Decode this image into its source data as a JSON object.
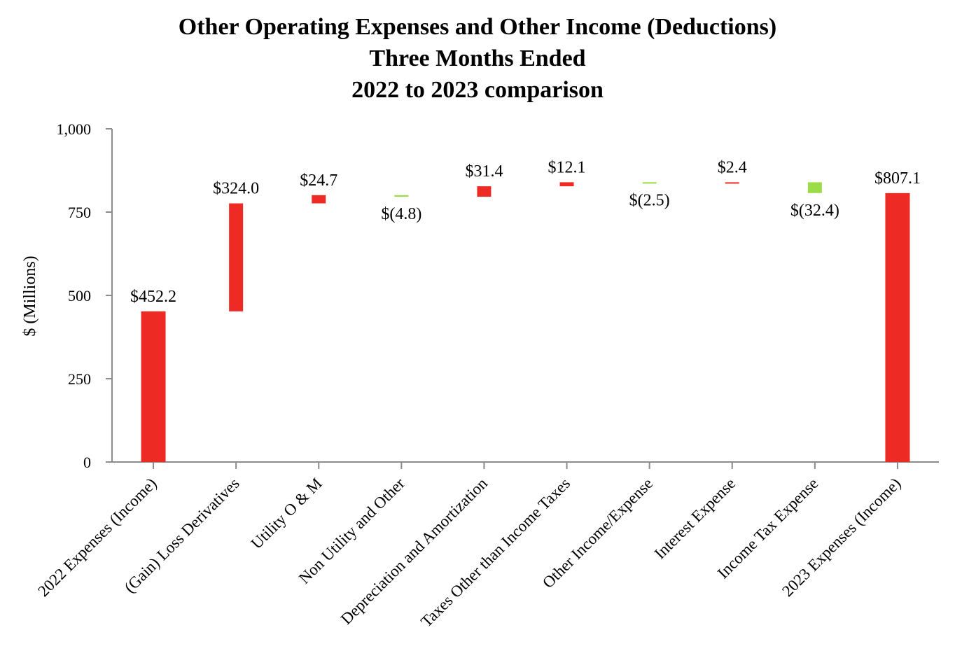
{
  "chart_data": {
    "type": "waterfall",
    "title_lines": [
      "Other Operating Expenses and Other Income (Deductions)",
      "Three Months Ended",
      "2022 to 2023 comparison"
    ],
    "xlabel": "",
    "ylabel": "$ (Millions)",
    "ylim": [
      0,
      1000
    ],
    "yticks": [
      {
        "value": 0,
        "label": "0"
      },
      {
        "value": 250,
        "label": "250"
      },
      {
        "value": 500,
        "label": "500"
      },
      {
        "value": 750,
        "label": "750"
      },
      {
        "value": 1000,
        "label": "1,000"
      }
    ],
    "categories": [
      "2022 Expenses (Income)",
      "(Gain) Loss Derivatives",
      "Utility O & M",
      "Non Utility and Other",
      "Depreciation and Amortization",
      "Taxes Other than Income Taxes",
      "Other Income/Expense",
      "Interest Expense",
      "Income Tax Expense",
      "2023 Expenses (Income)"
    ],
    "values": [
      452.2,
      324.0,
      24.7,
      -4.8,
      31.4,
      12.1,
      -2.5,
      2.4,
      -32.4,
      807.1
    ],
    "kinds": [
      "total",
      "delta",
      "delta",
      "delta",
      "delta",
      "delta",
      "delta",
      "delta",
      "delta",
      "total"
    ],
    "value_labels": [
      "$452.2",
      "$324.0",
      "$24.7",
      "$(4.8)",
      "$31.4",
      "$12.1",
      "$(2.5)",
      "$2.4",
      "$(32.4)",
      "$807.1"
    ],
    "colors": {
      "increase": "#ee2a24",
      "decrease": "#9cdc48",
      "axis": "#8c8c8c"
    },
    "grid": false,
    "legend": "none"
  }
}
